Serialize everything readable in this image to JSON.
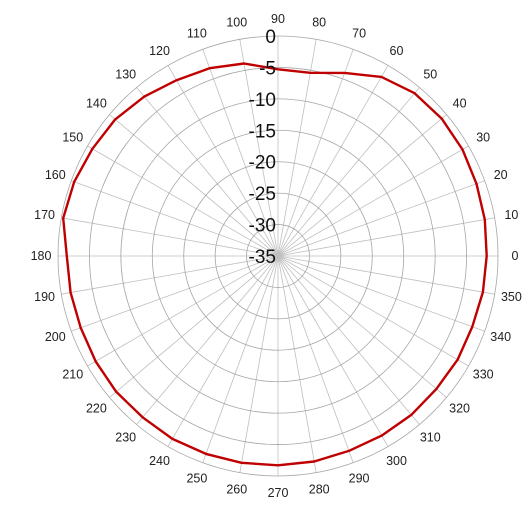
{
  "chart_data": {
    "type": "line",
    "subtype": "polar",
    "title": "",
    "angle_unit": "degrees",
    "angle_labels": [
      "0",
      "10",
      "20",
      "30",
      "40",
      "50",
      "60",
      "70",
      "80",
      "90",
      "100",
      "110",
      "120",
      "130",
      "140",
      "150",
      "160",
      "170",
      "180",
      "190",
      "200",
      "210",
      "220",
      "230",
      "240",
      "250",
      "260",
      "270",
      "280",
      "290",
      "300",
      "310",
      "320",
      "330",
      "340",
      "350"
    ],
    "radial_labels": [
      "0",
      "-5",
      "-10",
      "-15",
      "-20",
      "-25",
      "-30",
      "-35"
    ],
    "radial_range": [
      -35,
      0
    ],
    "grid": true,
    "legend": "none",
    "series": [
      {
        "color": "#c00000",
        "angles": [
          0,
          10,
          20,
          30,
          40,
          50,
          60,
          70,
          80,
          90,
          100,
          110,
          120,
          130,
          140,
          150,
          160,
          170,
          180,
          190,
          200,
          210,
          220,
          230,
          240,
          250,
          260,
          270,
          280,
          290,
          300,
          310,
          320,
          330,
          340,
          350
        ],
        "values": [
          -1.8,
          -1.6,
          -1.4,
          -1.1,
          -1.0,
          -1.2,
          -2.1,
          -4.0,
          -5.4,
          -5.3,
          -3.9,
          -3.2,
          -2.7,
          -1.9,
          -1.2,
          -0.9,
          -0.5,
          -0.3,
          -1.4,
          -1.5,
          -1.6,
          -1.5,
          -1.4,
          -1.5,
          -1.4,
          -1.5,
          -1.6,
          -1.7,
          -1.8,
          -2.0,
          -2.0,
          -2.0,
          -2.1,
          -2.0,
          -2.1,
          -1.9
        ]
      }
    ]
  }
}
